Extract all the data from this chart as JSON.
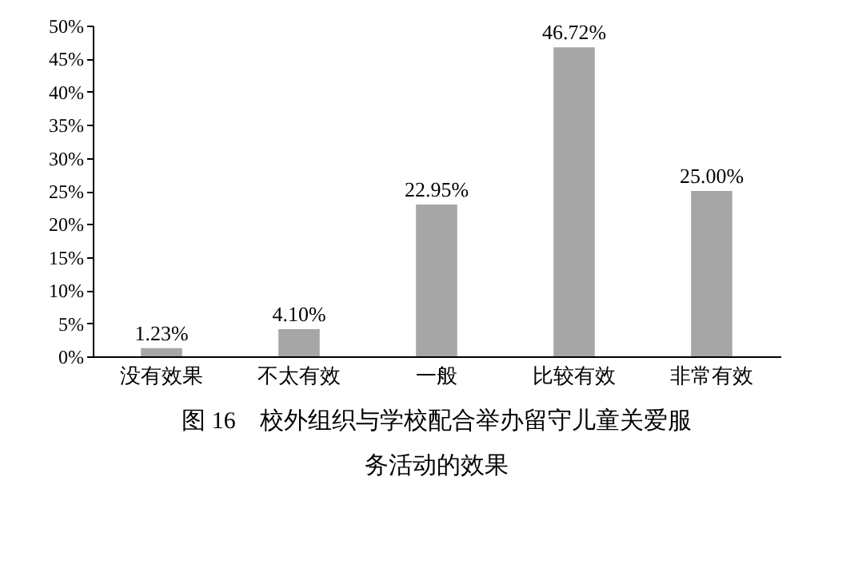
{
  "chart_data": {
    "type": "bar",
    "title": "图 16　校外组织与学校配合举办留守儿童关爱服务活动的效果",
    "categories": [
      "没有效果",
      "不太有效",
      "一般",
      "比较有效",
      "非常有效"
    ],
    "values": [
      1.23,
      4.1,
      22.95,
      46.72,
      25.0
    ],
    "value_labels": [
      "1.23%",
      "4.10%",
      "22.95%",
      "46.72%",
      "25.00%"
    ],
    "color": "#a6a6a6",
    "ylim": [
      0,
      50
    ],
    "yticks": [
      {
        "value": 0,
        "label": "0%"
      },
      {
        "value": 5,
        "label": "5%"
      },
      {
        "value": 10,
        "label": "10%"
      },
      {
        "value": 15,
        "label": "15%"
      },
      {
        "value": 20,
        "label": "20%"
      },
      {
        "value": 25,
        "label": "25%"
      },
      {
        "value": 30,
        "label": "30%"
      },
      {
        "value": 35,
        "label": "35%"
      },
      {
        "value": 40,
        "label": "40%"
      },
      {
        "value": 45,
        "label": "45%"
      },
      {
        "value": 50,
        "label": "50%"
      }
    ],
    "grid": false
  }
}
